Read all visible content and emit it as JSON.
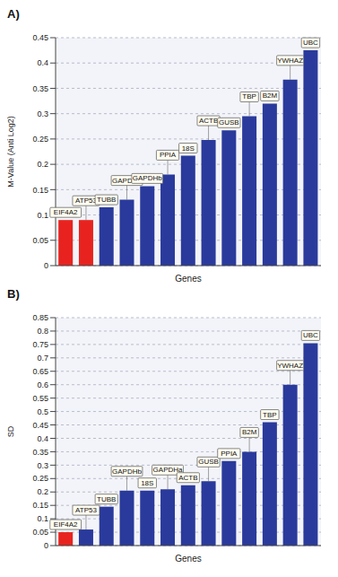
{
  "chart_data": [
    {
      "type": "bar",
      "title": "A)",
      "xlabel": "Genes",
      "ylabel": "M-Value (Anti Log2)",
      "categories": [
        "EIF4A2",
        "ATP53",
        "TUBB",
        "GAPDHa",
        "GAPDHb",
        "PPIA",
        "18S",
        "ACTB",
        "GUSB",
        "TBP",
        "B2M",
        "YWHAZ",
        "UBC"
      ],
      "values": [
        0.09,
        0.09,
        0.115,
        0.13,
        0.157,
        0.18,
        0.217,
        0.248,
        0.267,
        0.295,
        0.32,
        0.367,
        0.425
      ],
      "colors": [
        "#e8231f",
        "#e8231f",
        "#2a3a9c",
        "#2a3a9c",
        "#2a3a9c",
        "#2a3a9c",
        "#2a3a9c",
        "#2a3a9c",
        "#2a3a9c",
        "#2a3a9c",
        "#2a3a9c",
        "#2a3a9c",
        "#2a3a9c"
      ],
      "ylim": [
        0,
        0.45
      ],
      "yticks": [
        0,
        0.05,
        0.1,
        0.15,
        0.2,
        0.25,
        0.3,
        0.35,
        0.4,
        0.45
      ],
      "grid": true,
      "tick_labels": "y"
    },
    {
      "type": "bar",
      "title": "B)",
      "xlabel": "Genes",
      "ylabel": "SD",
      "categories": [
        "EIF4A2",
        "ATP53",
        "TUBB",
        "GAPDHb",
        "18S",
        "GAPDHa",
        "ACTB",
        "GUSB",
        "PPIA",
        "B2M",
        "TBP",
        "YWHAZ",
        "UBC"
      ],
      "values": [
        0.05,
        0.06,
        0.145,
        0.205,
        0.205,
        0.21,
        0.225,
        0.24,
        0.315,
        0.35,
        0.46,
        0.6,
        0.755
      ],
      "colors": [
        "#e8231f",
        "#2a3a9c",
        "#2a3a9c",
        "#2a3a9c",
        "#2a3a9c",
        "#2a3a9c",
        "#2a3a9c",
        "#2a3a9c",
        "#2a3a9c",
        "#2a3a9c",
        "#2a3a9c",
        "#2a3a9c",
        "#2a3a9c"
      ],
      "ylim": [
        0,
        0.85
      ],
      "yticks": [
        0,
        0.05,
        0.1,
        0.15,
        0.2,
        0.25,
        0.3,
        0.35,
        0.4,
        0.45,
        0.5,
        0.55,
        0.6,
        0.65,
        0.7,
        0.75,
        0.8,
        0.85
      ],
      "grid": true,
      "tick_labels": "y"
    }
  ]
}
